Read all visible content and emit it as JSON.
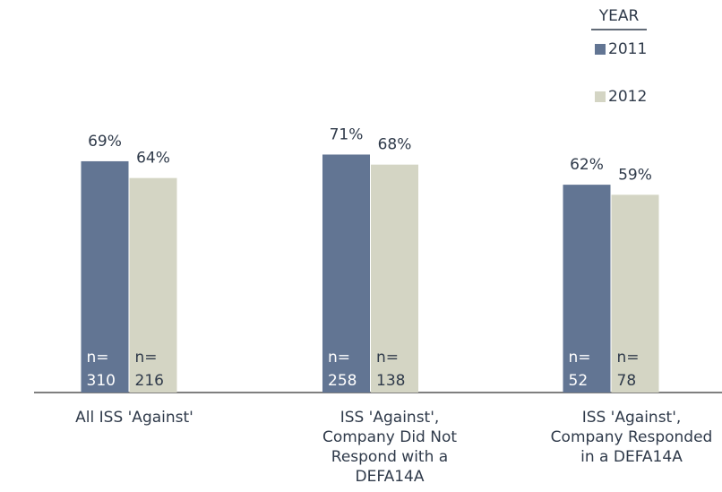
{
  "chart_data": {
    "type": "bar",
    "categories": [
      [
        "All ISS 'Against'"
      ],
      [
        "ISS 'Against',",
        "Company Did Not",
        "Respond with a",
        "DEFA14A"
      ],
      [
        "ISS 'Against',",
        "Company Responded",
        "in a DEFA14A"
      ]
    ],
    "legend_title": "YEAR",
    "sample_size_prefix": "n=",
    "series": [
      {
        "name": "2011",
        "color": "#627593",
        "values": [
          69,
          71,
          62
        ],
        "value_labels": [
          "69%",
          "71%",
          "62%"
        ],
        "sample_sizes": [
          310,
          258,
          52
        ]
      },
      {
        "name": "2012",
        "color": "#d4d5c4",
        "values": [
          64,
          68,
          59
        ],
        "value_labels": [
          "64%",
          "68%",
          "59%"
        ],
        "sample_sizes": [
          216,
          138,
          78
        ]
      }
    ],
    "ylim": [
      0,
      100
    ],
    "grid": false
  }
}
